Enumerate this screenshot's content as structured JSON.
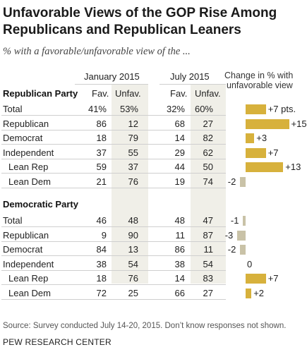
{
  "title_line1": "Unfavorable Views of the GOP Rise Among",
  "title_line2": "Republicans and Republican Leaners",
  "subtitle": "% with a favorable/unfavorable view of the ...",
  "headers": {
    "jan": "January 2015",
    "jul": "July 2015",
    "change_line1": "Change in % with",
    "change_line2": "unfavorable view",
    "fav": "Fav.",
    "unfav": "Unfav."
  },
  "colors": {
    "increase": "#d7b13c",
    "decrease": "#c9c2a7",
    "shade": "#f0efe8"
  },
  "source": "Source: Survey conducted July 14-20, 2015. Don’t know responses not shown.",
  "credit": "PEW RESEARCH CENTER",
  "chart_data": {
    "type": "table",
    "title": "Unfavorable Views of the GOP Rise Among Republicans and Republican Leaners",
    "subtitle": "% with a favorable/unfavorable view of the ...",
    "columns": [
      "Jan 2015 Fav.",
      "Jan 2015 Unfav.",
      "July 2015 Fav.",
      "July 2015 Unfav.",
      "Change in % with unfavorable view"
    ],
    "sections": [
      {
        "name": "Republican Party",
        "rows": [
          {
            "label": "Total",
            "jan_fav": "41%",
            "jan_unfav": "53%",
            "jul_fav": "32%",
            "jul_unfav": "60%",
            "change": 7,
            "change_label": "+7 pts."
          },
          {
            "label": "Republican",
            "jan_fav": "86",
            "jan_unfav": "12",
            "jul_fav": "68",
            "jul_unfav": "27",
            "change": 15,
            "change_label": "+15"
          },
          {
            "label": "Democrat",
            "jan_fav": "18",
            "jan_unfav": "79",
            "jul_fav": "14",
            "jul_unfav": "82",
            "change": 3,
            "change_label": "+3"
          },
          {
            "label": "Independent",
            "jan_fav": "37",
            "jan_unfav": "55",
            "jul_fav": "29",
            "jul_unfav": "62",
            "change": 7,
            "change_label": "+7"
          },
          {
            "label": "Lean Rep",
            "jan_fav": "59",
            "jan_unfav": "37",
            "jul_fav": "44",
            "jul_unfav": "50",
            "change": 13,
            "change_label": "+13",
            "indent": true
          },
          {
            "label": "Lean Dem",
            "jan_fav": "21",
            "jan_unfav": "76",
            "jul_fav": "19",
            "jul_unfav": "74",
            "change": -2,
            "change_label": "-2",
            "indent": true
          }
        ]
      },
      {
        "name": "Democratic Party",
        "rows": [
          {
            "label": "Total",
            "jan_fav": "46",
            "jan_unfav": "48",
            "jul_fav": "48",
            "jul_unfav": "47",
            "change": -1,
            "change_label": "-1"
          },
          {
            "label": "Republican",
            "jan_fav": "9",
            "jan_unfav": "90",
            "jul_fav": "11",
            "jul_unfav": "87",
            "change": -3,
            "change_label": "-3"
          },
          {
            "label": "Democrat",
            "jan_fav": "84",
            "jan_unfav": "13",
            "jul_fav": "86",
            "jul_unfav": "11",
            "change": -2,
            "change_label": "-2"
          },
          {
            "label": "Independent",
            "jan_fav": "38",
            "jan_unfav": "54",
            "jul_fav": "38",
            "jul_unfav": "54",
            "change": 0,
            "change_label": "0"
          },
          {
            "label": "Lean Rep",
            "jan_fav": "18",
            "jan_unfav": "76",
            "jul_fav": "14",
            "jul_unfav": "83",
            "change": 7,
            "change_label": "+7",
            "indent": true
          },
          {
            "label": "Lean Dem",
            "jan_fav": "72",
            "jan_unfav": "25",
            "jul_fav": "66",
            "jul_unfav": "27",
            "change": 2,
            "change_label": "+2",
            "indent": true
          }
        ]
      }
    ]
  }
}
